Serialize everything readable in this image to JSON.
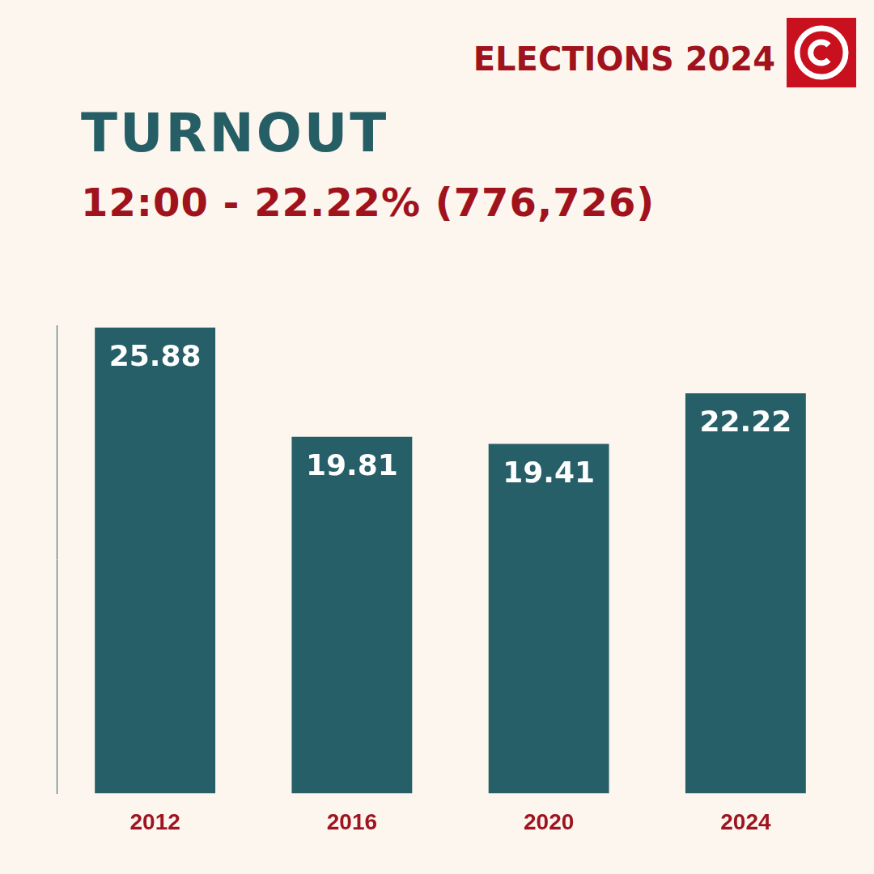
{
  "chart_data": {
    "type": "bar",
    "annotations": [
      "ELECTIONS 2024"
    ],
    "title": "TURNOUT",
    "subtitle": "12:00 - 22.22% (776,726)",
    "categories": [
      "2012",
      "2016",
      "2020",
      "2024"
    ],
    "values": [
      25.88,
      19.81,
      19.41,
      22.22
    ],
    "color": "#275f69",
    "ylim": [
      0,
      26
    ],
    "grid": false,
    "data_labels": true,
    "tick_labels": "x"
  }
}
